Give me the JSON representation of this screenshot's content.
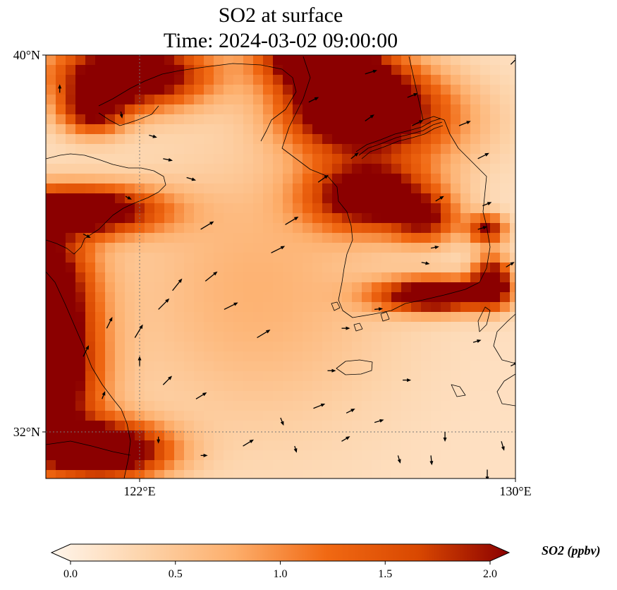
{
  "title": {
    "line1": "SO2 at surface",
    "line2": "Time: 2024-03-02 09:00:00"
  },
  "map": {
    "lon_range": [
      119.0,
      131.0
    ],
    "lat_range": [
      32.0,
      40.0
    ],
    "lat_ticks": [
      {
        "value": 40,
        "label": "40°N"
      },
      {
        "value": 32,
        "label": "32°N"
      }
    ],
    "lon_ticks": [
      {
        "value": 122,
        "label": "122°E"
      },
      {
        "value": 130,
        "label": "130°E"
      }
    ],
    "gridlines": {
      "lon": [
        122
      ],
      "lat": [
        32
      ],
      "style": "dotted"
    },
    "colormap": [
      "#fff5eb",
      "#fdd4ab",
      "#fdae6b",
      "#f16913",
      "#d94801",
      "#8b0000"
    ],
    "field_min": 0.0,
    "field_max": 2.0,
    "hotspots": [
      {
        "lon": 119.6,
        "lat": 35.2,
        "amp": 2.6,
        "rx": 1.2,
        "ry": 1.3
      },
      {
        "lon": 119.8,
        "lat": 33.2,
        "amp": 3.0,
        "rx": 1.2,
        "ry": 1.6
      },
      {
        "lon": 121.3,
        "lat": 31.6,
        "amp": 2.6,
        "rx": 1.3,
        "ry": 0.6
      },
      {
        "lon": 121.8,
        "lat": 39.6,
        "amp": 2.6,
        "rx": 1.6,
        "ry": 0.7
      },
      {
        "lon": 121.0,
        "lat": 38.8,
        "amp": 1.6,
        "rx": 0.7,
        "ry": 0.5
      },
      {
        "lon": 120.8,
        "lat": 36.7,
        "amp": 2.4,
        "rx": 1.6,
        "ry": 0.5
      },
      {
        "lon": 126.5,
        "lat": 39.0,
        "amp": 2.9,
        "rx": 1.4,
        "ry": 1.0
      },
      {
        "lon": 125.7,
        "lat": 40.0,
        "amp": 2.3,
        "rx": 1.1,
        "ry": 0.6
      },
      {
        "lon": 126.9,
        "lat": 37.0,
        "amp": 2.2,
        "rx": 1.3,
        "ry": 0.7
      },
      {
        "lon": 129.5,
        "lat": 35.2,
        "amp": 2.2,
        "rx": 0.4,
        "ry": 0.5
      },
      {
        "lon": 128.3,
        "lat": 34.9,
        "amp": 2.5,
        "rx": 1.2,
        "ry": 0.35
      },
      {
        "lon": 129.4,
        "lat": 36.3,
        "amp": 1.7,
        "rx": 0.4,
        "ry": 0.3
      },
      {
        "lon": 128.1,
        "lat": 36.5,
        "amp": 1.3,
        "rx": 0.7,
        "ry": 0.5
      },
      {
        "lon": 124.5,
        "lat": 35.0,
        "amp": 0.5,
        "rx": 3.0,
        "ry": 3.0
      },
      {
        "lon": 128.0,
        "lat": 38.6,
        "amp": 0.8,
        "rx": 1.5,
        "ry": 1.0
      }
    ],
    "wind_vectors": [
      {
        "lon": 120.3,
        "lat": 39.2,
        "u": 0.0,
        "v": 1.0,
        "len": 12
      },
      {
        "lon": 121.6,
        "lat": 38.8,
        "u": 0.2,
        "v": -1.0,
        "len": 10
      },
      {
        "lon": 122.2,
        "lat": 38.3,
        "u": 1.0,
        "v": -0.3,
        "len": 12
      },
      {
        "lon": 122.5,
        "lat": 37.8,
        "u": 1.0,
        "v": -0.2,
        "len": 14
      },
      {
        "lon": 121.7,
        "lat": 37.0,
        "u": 1.0,
        "v": -0.5,
        "len": 10
      },
      {
        "lon": 120.8,
        "lat": 36.2,
        "u": 1.0,
        "v": -0.5,
        "len": 12
      },
      {
        "lon": 123.0,
        "lat": 37.4,
        "u": 1.0,
        "v": -0.3,
        "len": 14
      },
      {
        "lon": 124.8,
        "lat": 35.8,
        "u": 1.0,
        "v": 0.5,
        "len": 22
      },
      {
        "lon": 123.4,
        "lat": 35.2,
        "u": 1.0,
        "v": 0.8,
        "len": 22
      },
      {
        "lon": 122.7,
        "lat": 35.0,
        "u": 0.8,
        "v": 1.0,
        "len": 22
      },
      {
        "lon": 122.4,
        "lat": 34.6,
        "u": 1.0,
        "v": 1.0,
        "len": 22
      },
      {
        "lon": 121.9,
        "lat": 34.0,
        "u": 0.6,
        "v": 1.0,
        "len": 22
      },
      {
        "lon": 121.3,
        "lat": 34.2,
        "u": 0.5,
        "v": 1.0,
        "len": 18
      },
      {
        "lon": 120.8,
        "lat": 33.6,
        "u": 0.5,
        "v": 1.0,
        "len": 18
      },
      {
        "lon": 123.8,
        "lat": 34.6,
        "u": 1.0,
        "v": 0.5,
        "len": 22
      },
      {
        "lon": 124.5,
        "lat": 34.0,
        "u": 1.0,
        "v": 0.6,
        "len": 22
      },
      {
        "lon": 122.5,
        "lat": 33.0,
        "u": 1.0,
        "v": 1.0,
        "len": 18
      },
      {
        "lon": 123.2,
        "lat": 32.7,
        "u": 1.0,
        "v": 0.6,
        "len": 18
      },
      {
        "lon": 124.2,
        "lat": 31.7,
        "u": 1.0,
        "v": 0.6,
        "len": 18
      },
      {
        "lon": 125.7,
        "lat": 32.5,
        "u": 1.0,
        "v": 0.4,
        "len": 18
      },
      {
        "lon": 126.3,
        "lat": 31.8,
        "u": 1.0,
        "v": 0.6,
        "len": 14
      },
      {
        "lon": 127.0,
        "lat": 32.2,
        "u": 1.0,
        "v": 0.3,
        "len": 14
      },
      {
        "lon": 126.4,
        "lat": 32.4,
        "u": 1.0,
        "v": 0.5,
        "len": 14
      },
      {
        "lon": 125.1,
        "lat": 36.4,
        "u": 1.0,
        "v": 0.6,
        "len": 22
      },
      {
        "lon": 125.8,
        "lat": 37.3,
        "u": 1.0,
        "v": 0.7,
        "len": 18
      },
      {
        "lon": 126.5,
        "lat": 37.8,
        "u": 1.0,
        "v": 0.8,
        "len": 14
      },
      {
        "lon": 126.8,
        "lat": 38.6,
        "u": 1.0,
        "v": 0.7,
        "len": 16
      },
      {
        "lon": 127.8,
        "lat": 38.5,
        "u": 1.0,
        "v": 0.5,
        "len": 18
      },
      {
        "lon": 128.8,
        "lat": 38.5,
        "u": 1.0,
        "v": 0.4,
        "len": 18
      },
      {
        "lon": 129.2,
        "lat": 37.8,
        "u": 1.0,
        "v": 0.5,
        "len": 18
      },
      {
        "lon": 128.3,
        "lat": 36.9,
        "u": 1.0,
        "v": 0.6,
        "len": 14
      },
      {
        "lon": 129.3,
        "lat": 36.8,
        "u": 1.0,
        "v": 0.4,
        "len": 14
      },
      {
        "lon": 129.9,
        "lat": 39.8,
        "u": 1.0,
        "v": 1.0,
        "len": 16
      },
      {
        "lon": 129.2,
        "lat": 36.3,
        "u": 1.0,
        "v": 0.3,
        "len": 14
      },
      {
        "lon": 129.8,
        "lat": 35.5,
        "u": 1.0,
        "v": 0.6,
        "len": 14
      },
      {
        "lon": 128.2,
        "lat": 35.9,
        "u": 1.0,
        "v": 0.2,
        "len": 12
      },
      {
        "lon": 125.6,
        "lat": 39.0,
        "u": 1.0,
        "v": 0.5,
        "len": 16
      },
      {
        "lon": 126.8,
        "lat": 39.6,
        "u": 1.0,
        "v": 0.3,
        "len": 18
      },
      {
        "lon": 127.7,
        "lat": 39.1,
        "u": 1.0,
        "v": 0.4,
        "len": 16
      },
      {
        "lon": 128.0,
        "lat": 35.6,
        "u": 1.0,
        "v": -0.2,
        "len": 12
      },
      {
        "lon": 127.0,
        "lat": 34.6,
        "u": 1.0,
        "v": 0.1,
        "len": 12
      },
      {
        "lon": 126.3,
        "lat": 34.2,
        "u": 1.0,
        "v": 0.0,
        "len": 12
      },
      {
        "lon": 127.6,
        "lat": 33.1,
        "u": 1.0,
        "v": 0.0,
        "len": 12
      },
      {
        "lon": 123.3,
        "lat": 36.3,
        "u": 1.0,
        "v": 0.6,
        "len": 22
      },
      {
        "lon": 126.0,
        "lat": 33.3,
        "u": 1.0,
        "v": 0.0,
        "len": 12
      },
      {
        "lon": 126.8,
        "lat": 30.9,
        "u": 0.4,
        "v": -1.0,
        "len": 10
      },
      {
        "lon": 127.5,
        "lat": 31.5,
        "u": 0.3,
        "v": -1.0,
        "len": 12
      },
      {
        "lon": 128.2,
        "lat": 31.5,
        "u": 0.1,
        "v": -1.0,
        "len": 14
      },
      {
        "lon": 128.5,
        "lat": 32.0,
        "u": 0.0,
        "v": -1.0,
        "len": 14
      },
      {
        "lon": 129.4,
        "lat": 31.2,
        "u": 0.0,
        "v": -1.0,
        "len": 16
      },
      {
        "lon": 129.7,
        "lat": 31.8,
        "u": 0.3,
        "v": -1.0,
        "len": 14
      },
      {
        "lon": 125.0,
        "lat": 32.3,
        "u": 0.4,
        "v": -1.0,
        "len": 12
      },
      {
        "lon": 125.3,
        "lat": 31.7,
        "u": 0.3,
        "v": -1.0,
        "len": 10
      },
      {
        "lon": 122.4,
        "lat": 31.9,
        "u": 0.0,
        "v": -1.0,
        "len": 10
      },
      {
        "lon": 123.3,
        "lat": 31.5,
        "u": 1.0,
        "v": 0.0,
        "len": 10
      },
      {
        "lon": 121.2,
        "lat": 32.7,
        "u": 0.4,
        "v": 1.0,
        "len": 12
      },
      {
        "lon": 122.0,
        "lat": 33.4,
        "u": 0.0,
        "v": 1.0,
        "len": 14
      },
      {
        "lon": 129.9,
        "lat": 33.4,
        "u": 1.0,
        "v": 0.5,
        "len": 12
      },
      {
        "lon": 129.1,
        "lat": 33.9,
        "u": 1.0,
        "v": 0.3,
        "len": 12
      }
    ]
  },
  "colorbar": {
    "label": "SO2 (ppbv)",
    "ticks": [
      {
        "value": 0.0,
        "label": "0.0"
      },
      {
        "value": 0.5,
        "label": "0.5"
      },
      {
        "value": 1.0,
        "label": "1.0"
      },
      {
        "value": 1.5,
        "label": "1.5"
      },
      {
        "value": 2.0,
        "label": "2.0"
      }
    ],
    "extend": "both"
  }
}
